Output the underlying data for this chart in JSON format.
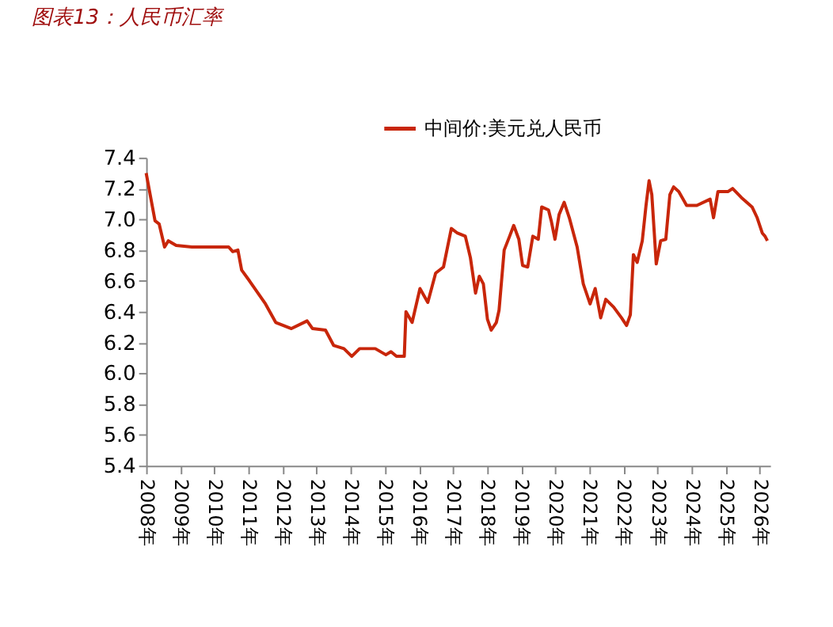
{
  "chart_data": {
    "type": "line",
    "title": "图表13：人民币汇率",
    "x": [
      2008.0,
      2008.1,
      2008.26,
      2008.38,
      2008.54,
      2008.65,
      2008.88,
      2009.34,
      2010.42,
      2010.54,
      2010.69,
      2010.8,
      2011.03,
      2011.5,
      2011.8,
      2012.26,
      2012.72,
      2012.88,
      2013.26,
      2013.5,
      2013.8,
      2014.03,
      2014.26,
      2014.72,
      2015.03,
      2015.18,
      2015.34,
      2015.57,
      2015.62,
      2015.8,
      2016.03,
      2016.26,
      2016.49,
      2016.72,
      2016.95,
      2017.13,
      2017.36,
      2017.51,
      2017.66,
      2017.77,
      2017.89,
      2018.01,
      2018.12,
      2018.27,
      2018.35,
      2018.5,
      2018.66,
      2018.78,
      2018.93,
      2019.04,
      2019.19,
      2019.34,
      2019.5,
      2019.6,
      2019.8,
      2019.88,
      2019.99,
      2020.11,
      2020.26,
      2020.41,
      2020.64,
      2020.82,
      2021.02,
      2021.17,
      2021.33,
      2021.48,
      2021.71,
      2021.94,
      2022.09,
      2022.2,
      2022.29,
      2022.4,
      2022.55,
      2022.66,
      2022.75,
      2022.83,
      2022.9,
      2022.96,
      2023.09,
      2023.24,
      2023.36,
      2023.47,
      2023.62,
      2023.85,
      2024.15,
      2024.54,
      2024.64,
      2024.77,
      2025.07,
      2025.2,
      2025.46,
      2025.77,
      2025.92,
      2026.07,
      2026.15,
      2026.22
    ],
    "series": [
      {
        "name": "中间价:美元兑人民币",
        "color": "#c8260a",
        "values": [
          7.3,
          7.18,
          6.99,
          6.97,
          6.82,
          6.86,
          6.83,
          6.82,
          6.82,
          6.79,
          6.8,
          6.67,
          6.6,
          6.45,
          6.33,
          6.29,
          6.34,
          6.29,
          6.28,
          6.18,
          6.16,
          6.11,
          6.16,
          6.16,
          6.12,
          6.14,
          6.11,
          6.11,
          6.4,
          6.33,
          6.55,
          6.46,
          6.65,
          6.69,
          6.94,
          6.91,
          6.89,
          6.75,
          6.52,
          6.63,
          6.58,
          6.35,
          6.28,
          6.33,
          6.41,
          6.8,
          6.89,
          6.96,
          6.87,
          6.7,
          6.69,
          6.89,
          6.87,
          7.08,
          7.06,
          6.99,
          6.87,
          7.03,
          7.11,
          7.01,
          6.82,
          6.58,
          6.45,
          6.55,
          6.36,
          6.48,
          6.43,
          6.36,
          6.31,
          6.38,
          6.77,
          6.72,
          6.86,
          7.09,
          7.25,
          7.16,
          6.92,
          6.71,
          6.86,
          6.87,
          7.16,
          7.21,
          7.18,
          7.09,
          7.09,
          7.13,
          7.01,
          7.18,
          7.18,
          7.2,
          7.14,
          7.08,
          7.01,
          6.91,
          6.89,
          6.86
        ]
      }
    ],
    "xlim": [
      2008,
      2026.3
    ],
    "xticks": [
      {
        "value": 2008,
        "label": "2008年"
      },
      {
        "value": 2009,
        "label": "2009年"
      },
      {
        "value": 2010,
        "label": "2010年"
      },
      {
        "value": 2011,
        "label": "2011年"
      },
      {
        "value": 2012,
        "label": "2012年"
      },
      {
        "value": 2013,
        "label": "2013年"
      },
      {
        "value": 2014,
        "label": "2014年"
      },
      {
        "value": 2015,
        "label": "2015年"
      },
      {
        "value": 2016,
        "label": "2016年"
      },
      {
        "value": 2017,
        "label": "2017年"
      },
      {
        "value": 2018,
        "label": "2018年"
      },
      {
        "value": 2019,
        "label": "2019年"
      },
      {
        "value": 2020,
        "label": "2020年"
      },
      {
        "value": 2021,
        "label": "2021年"
      },
      {
        "value": 2022,
        "label": "2022年"
      },
      {
        "value": 2023,
        "label": "2023年"
      },
      {
        "value": 2024,
        "label": "2024年"
      },
      {
        "value": 2025,
        "label": "2025年"
      },
      {
        "value": 2026,
        "label": "2026年"
      }
    ],
    "ylim": [
      5.4,
      7.4
    ],
    "yticks": [
      5.4,
      5.6,
      5.8,
      {
        "value": 6,
        "label": "6.0"
      },
      6.2,
      6.4,
      6.6,
      6.8,
      {
        "value": 7,
        "label": "7.0"
      },
      7.2,
      7.4
    ],
    "grid": false,
    "legend": "top",
    "marker": "none",
    "line_style": "solid"
  }
}
